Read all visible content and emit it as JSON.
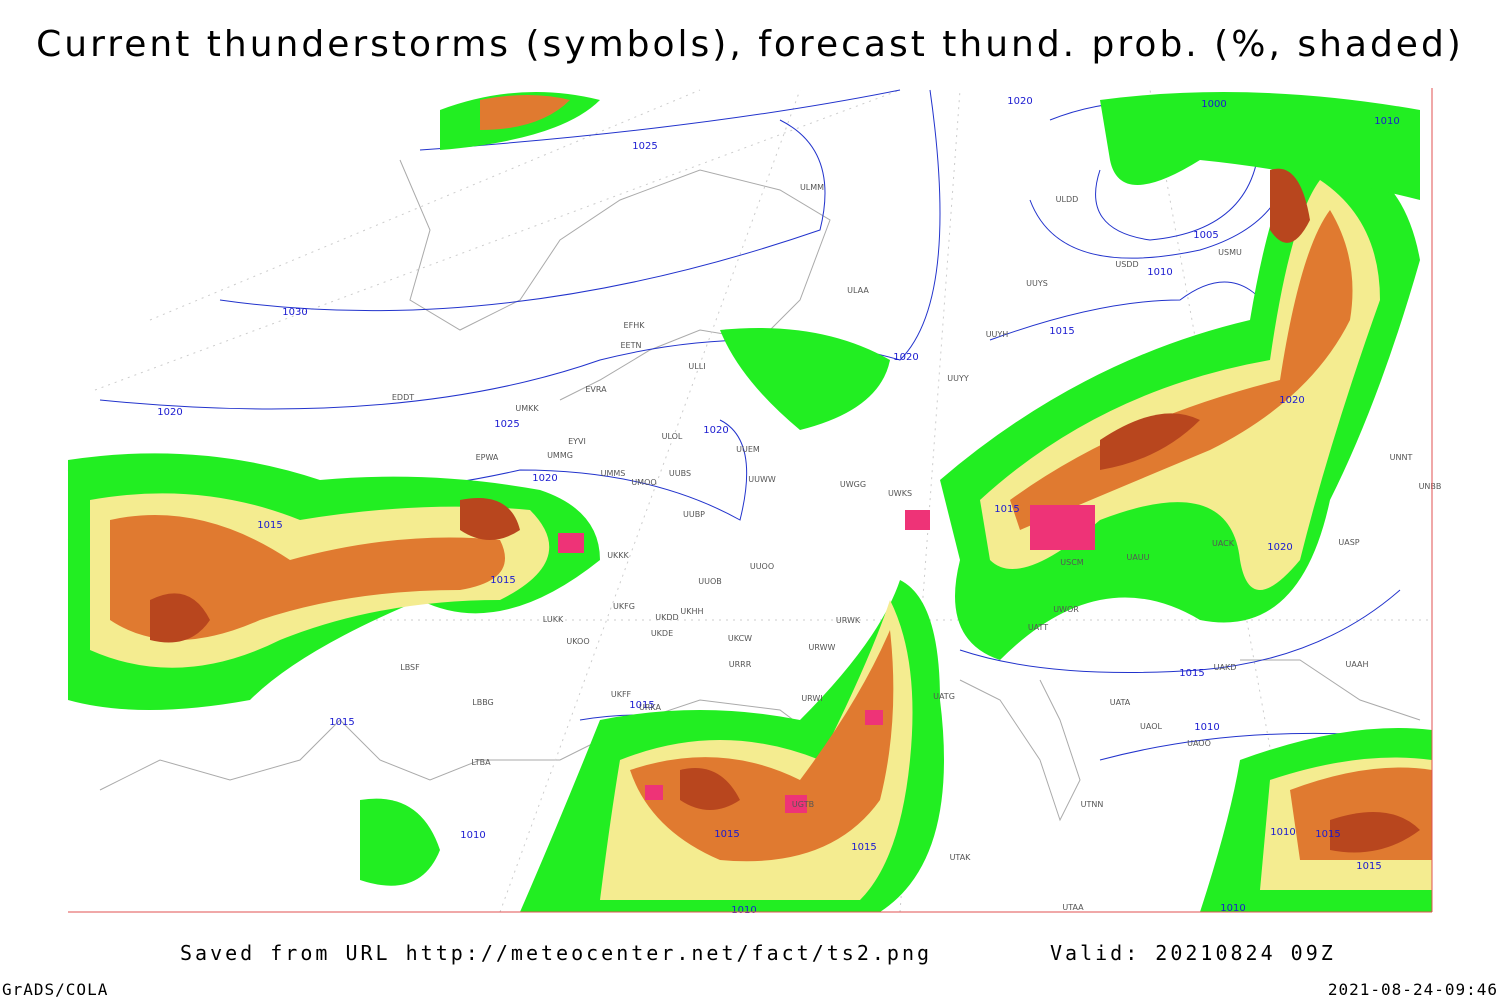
{
  "header": {
    "title": "Current thunderstorms (symbols), forecast thund. prob. (%, shaded)"
  },
  "map": {
    "isobar_labels": [
      "1020",
      "1025",
      "1030",
      "1020",
      "1025",
      "1020",
      "1020",
      "1020",
      "1015",
      "1015",
      "1015",
      "1015",
      "1015",
      "1015",
      "1010",
      "1010",
      "1015",
      "1015",
      "1000",
      "1005",
      "1010",
      "1010",
      "1020",
      "1020",
      "1015",
      "1010",
      "1010",
      "1015",
      "1015",
      "1010"
    ],
    "stations": [
      "ULMM",
      "ULAA",
      "UUYS",
      "UUYH",
      "UUYY",
      "EFHK",
      "EETN",
      "ULLI",
      "ULOL",
      "UUEM",
      "EVRA",
      "EDDT",
      "UMKK",
      "EYVI",
      "UMMG",
      "EPWA",
      "UMMS",
      "UMOO",
      "UUBS",
      "UUWW",
      "UWGG",
      "UWKS",
      "UUBP",
      "UKKK",
      "UUOO",
      "UUOB",
      "UKHH",
      "UKDD",
      "UKFG",
      "LUKK",
      "UKOO",
      "UKDE",
      "UKCW",
      "URRR",
      "URWW",
      "URWK",
      "LBSF",
      "LBBG",
      "UKFF",
      "URKA",
      "URWI",
      "UATG",
      "LTBA",
      "UGTB",
      "UTAK",
      "UTAA",
      "UTNN",
      "UATA",
      "UAOL",
      "UAOO",
      "UAKD",
      "UATT",
      "UWOR",
      "UACK",
      "UASP",
      "UAAH",
      "UNBB",
      "UNNT",
      "USCM",
      "UAUU",
      "ULDD",
      "USDD",
      "USMU"
    ]
  },
  "footer": {
    "source": "Saved from URL http://meteocenter.net/fact/ts2.png",
    "valid": "Valid: 20210824 09Z",
    "software": "GrADS/COLA",
    "timestamp": "2021-08-24-09:46"
  }
}
